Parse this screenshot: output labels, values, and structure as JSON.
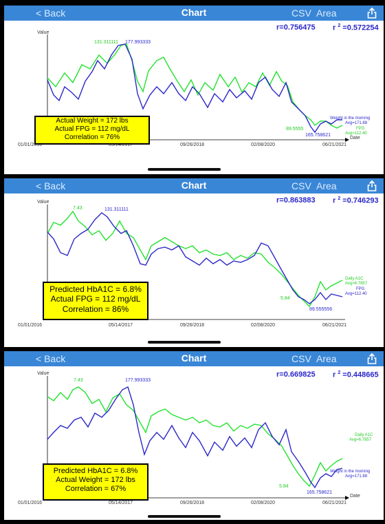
{
  "nav": {
    "back_label": "< Back",
    "title": "Chart",
    "csv_label": "CSV",
    "area_label": "Area",
    "share_icon": "share-icon"
  },
  "colors": {
    "navbar": "#3a86d6",
    "blue_series": "#2a27c9",
    "green_series": "#22e22e",
    "box": "#ffff00"
  },
  "panels": [
    {
      "r_text": "r=0.756475",
      "r2_prefix": "r ",
      "r2_suffix": " =0.572254",
      "y_axis_label": "Value",
      "x_ticks": [
        "01/01/2016",
        "05/14/2017",
        "09/26/2018",
        "02/08/2020",
        "06/21/2021"
      ],
      "date_label": "Date",
      "annotations": {
        "max_green": "131.311111",
        "max_blue": "177.993333",
        "min_green": "89.5555",
        "min_blue": "165.758621"
      },
      "legend": {
        "blue_name": "Weight in the morning",
        "blue_avg": "Avg=171.88",
        "green_name": "FPG",
        "green_avg": "Avg=112.40"
      },
      "box_lines": [
        "Actual Weight = 172 lbs",
        "Actual FPG = 112 mg/dL",
        "Correlation = 76%"
      ]
    },
    {
      "r_text": "r=0.863883",
      "r2_prefix": "r ",
      "r2_suffix": " =0.746293",
      "y_axis_label": "Value",
      "x_ticks": [
        "01/01/2016",
        "05/14/2017",
        "09/26/2018",
        "02/08/2020",
        "06/21/2021"
      ],
      "date_label": "Date",
      "annotations": {
        "max_green": "7.43",
        "max_blue": "131.311111",
        "min_green": "5.84",
        "min_blue": "89.555556"
      },
      "legend": {
        "green_name": "Daily A1C",
        "green_avg": "Avg=6.7857",
        "blue_name": "FPG",
        "blue_avg": "Avg=112.40"
      },
      "box_lines": [
        "Predicted HbA1C = 6.8%",
        "Actual FPG = 112 mg/dL",
        "Correlation = 86%"
      ]
    },
    {
      "r_text": "r=0.669825",
      "r2_prefix": "r ",
      "r2_suffix": " =0.448665",
      "y_axis_label": "Value",
      "x_ticks": [
        "01/01/2016",
        "05/14/2017",
        "09/26/2018",
        "02/08/2020",
        "06/21/2021"
      ],
      "date_label": "Date",
      "annotations": {
        "max_green": "7.43",
        "max_blue": "177.993333",
        "min_green": "5.84",
        "min_blue": "165.758621"
      },
      "legend": {
        "green_name": "Daily A1C",
        "green_avg": "Avg=6.7857",
        "blue_name": "Weight in the morning",
        "blue_avg": "Avg=171.88"
      },
      "box_lines": [
        "Predicted HbA1C = 6.8%",
        "Actual Weight = 172 lbs",
        "Correlation = 67%"
      ]
    }
  ]
}
